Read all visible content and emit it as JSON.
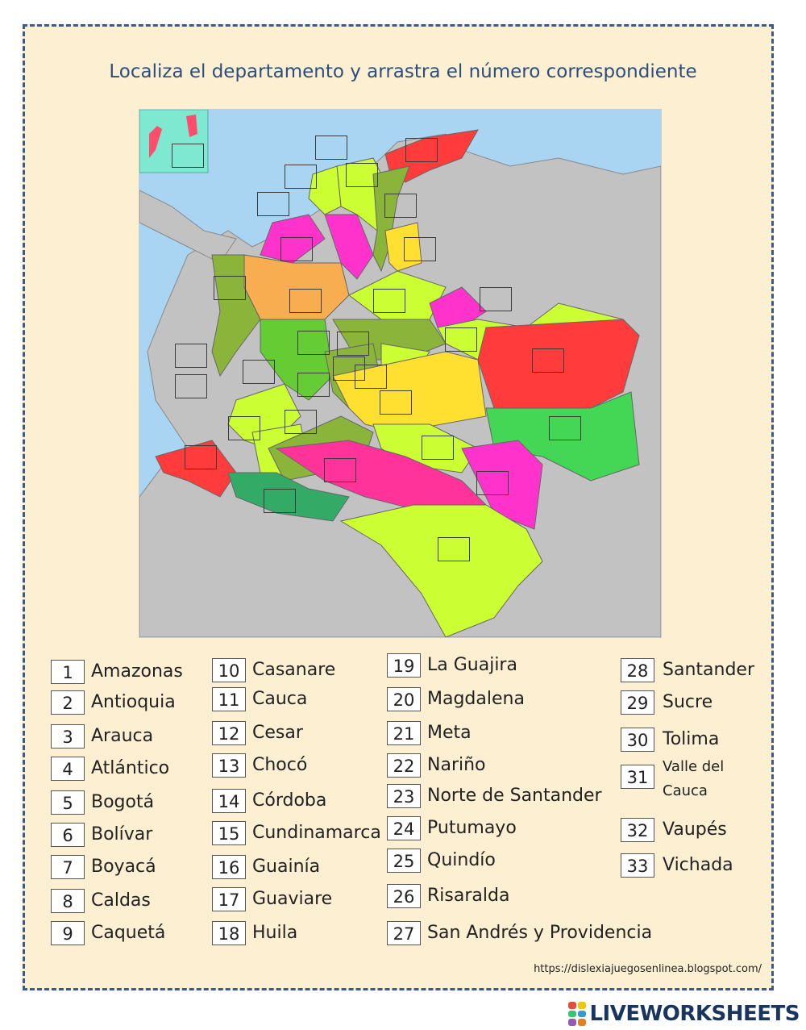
{
  "title": "Localiza el departamento y arrastra el número correspondiente",
  "url": "https://dislexiajuegosenlinea.blogspot.com/",
  "brand": {
    "name": "LIVEWORKSHEETS",
    "color": "#17355f"
  },
  "legend": [
    {
      "num": "1",
      "name": "Amazonas"
    },
    {
      "num": "2",
      "name": "Antioquia"
    },
    {
      "num": "3",
      "name": "Arauca"
    },
    {
      "num": "4",
      "name": "Atlántico"
    },
    {
      "num": "5",
      "name": "Bogotá"
    },
    {
      "num": "6",
      "name": "Bolívar"
    },
    {
      "num": "7",
      "name": "Boyacá"
    },
    {
      "num": "8",
      "name": "Caldas"
    },
    {
      "num": "9",
      "name": "Caquetá"
    },
    {
      "num": "10",
      "name": "Casanare"
    },
    {
      "num": "11",
      "name": "Cauca"
    },
    {
      "num": "12",
      "name": "Cesar"
    },
    {
      "num": "13",
      "name": "Chocó"
    },
    {
      "num": "14",
      "name": "Córdoba"
    },
    {
      "num": "15",
      "name": "Cundinamarca"
    },
    {
      "num": "16",
      "name": "Guainía"
    },
    {
      "num": "17",
      "name": "Guaviare"
    },
    {
      "num": "18",
      "name": "Huila"
    },
    {
      "num": "19",
      "name": "La Guajira"
    },
    {
      "num": "20",
      "name": "Magdalena"
    },
    {
      "num": "21",
      "name": "Meta"
    },
    {
      "num": "22",
      "name": "Nariño"
    },
    {
      "num": "23",
      "name": "Norte de Santander"
    },
    {
      "num": "24",
      "name": "Putumayo"
    },
    {
      "num": "25",
      "name": "Quindío"
    },
    {
      "num": "26",
      "name": "Risaralda"
    },
    {
      "num": "27",
      "name": "San Andrés y Providencia"
    },
    {
      "num": "28",
      "name": "Santander"
    },
    {
      "num": "29",
      "name": "Sucre"
    },
    {
      "num": "30",
      "name": "Tolima"
    },
    {
      "num": "31",
      "name": "Valle del Cauca"
    },
    {
      "num": "32",
      "name": "Vaupés"
    },
    {
      "num": "33",
      "name": "Vichada"
    }
  ]
}
